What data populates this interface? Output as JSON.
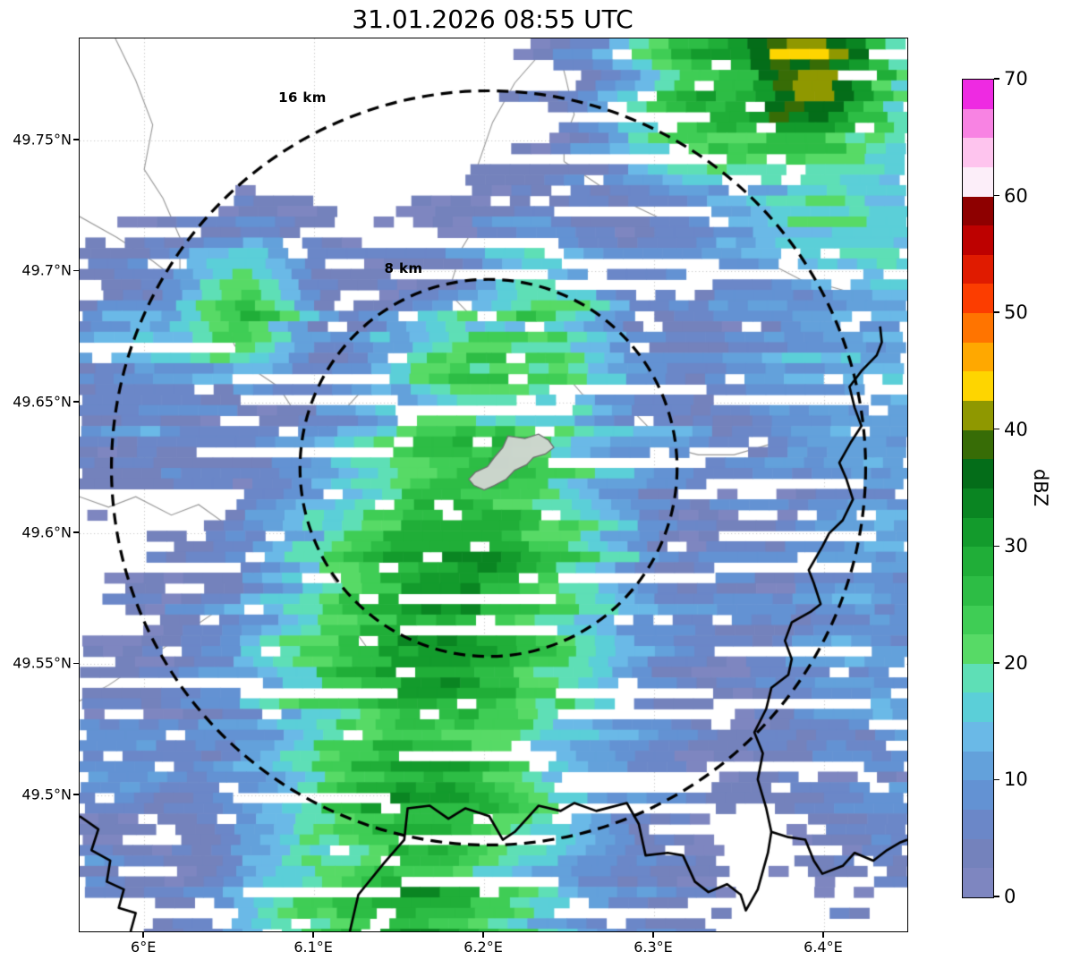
{
  "chart_data": {
    "type": "heatmap",
    "title": "31.01.2026 08:55 UTC",
    "x_axis": {
      "range": [
        5.962,
        6.449
      ],
      "ticks": [
        {
          "value": 6.0,
          "label": "6°E"
        },
        {
          "value": 6.1,
          "label": "6.1°E"
        },
        {
          "value": 6.2,
          "label": "6.2°E"
        },
        {
          "value": 6.3,
          "label": "6.3°E"
        },
        {
          "value": 6.4,
          "label": "6.4°E"
        }
      ]
    },
    "y_axis": {
      "range": [
        49.448,
        49.789
      ],
      "ticks": [
        {
          "value": 49.75,
          "label": "49.75°N"
        },
        {
          "value": 49.7,
          "label": "49.7°N"
        },
        {
          "value": 49.65,
          "label": "49.65°N"
        },
        {
          "value": 49.6,
          "label": "49.6°N"
        },
        {
          "value": 49.55,
          "label": "49.55°N"
        },
        {
          "value": 49.5,
          "label": "49.5°N"
        }
      ]
    },
    "grid": "dotted",
    "colorbar": {
      "label": "dBZ",
      "min": 0,
      "max": 70,
      "step": 2.5,
      "tick_values": [
        0,
        10,
        20,
        30,
        40,
        50,
        60,
        70
      ],
      "tick_labels": [
        "0",
        "10",
        "20",
        "30",
        "40",
        "50",
        "60",
        "70"
      ],
      "colors": [
        "#7e86c0",
        "#7482bc",
        "#6b87c8",
        "#6392d3",
        "#63a1db",
        "#6ab9e7",
        "#5bcfd8",
        "#5edfb6",
        "#57da66",
        "#3fcd55",
        "#2dbd45",
        "#20ae38",
        "#139b2c",
        "#0a8522",
        "#046d19",
        "#376c06",
        "#8f9800",
        "#fed500",
        "#ffa800",
        "#ff7400",
        "#fc3d00",
        "#e01b00",
        "#bd0100",
        "#8e0000",
        "#fceef9",
        "#fec4ee",
        "#f883e3",
        "#ee2ae2"
      ]
    },
    "range_circles": {
      "center": [
        6.2026,
        49.625
      ],
      "circles": [
        {
          "label": "8 km",
          "radius_km": 8
        },
        {
          "label": "16 km",
          "radius_km": 16
        }
      ]
    },
    "echo_blobs": {
      "format": [
        "lon",
        "lat",
        "peak_dbz",
        "sigma_lon_deg",
        "sigma_lat_deg"
      ],
      "blobs": [
        [
          6.155,
          49.455,
          29,
          0.075,
          0.03
        ],
        [
          6.165,
          49.5,
          30,
          0.075,
          0.032
        ],
        [
          6.17,
          49.55,
          31,
          0.08,
          0.034
        ],
        [
          6.18,
          49.59,
          33,
          0.075,
          0.034
        ],
        [
          6.195,
          49.625,
          26,
          0.07,
          0.028
        ],
        [
          6.21,
          49.66,
          25,
          0.055,
          0.028
        ],
        [
          6.235,
          49.69,
          22,
          0.04,
          0.022
        ],
        [
          6.29,
          49.64,
          9,
          0.045,
          0.03
        ],
        [
          6.055,
          49.685,
          27,
          0.033,
          0.02
        ],
        [
          6.02,
          49.675,
          14,
          0.045,
          0.022
        ],
        [
          6.0,
          49.66,
          9,
          0.04,
          0.03
        ],
        [
          6.26,
          49.72,
          8,
          0.03,
          0.015
        ],
        [
          6.33,
          49.705,
          9,
          0.06,
          0.028
        ],
        [
          6.39,
          49.775,
          43,
          0.045,
          0.028
        ],
        [
          6.34,
          49.77,
          30,
          0.05,
          0.03
        ],
        [
          6.41,
          49.74,
          20,
          0.07,
          0.045
        ],
        [
          6.31,
          49.783,
          14,
          0.018,
          0.01
        ],
        [
          6.43,
          49.7,
          17,
          0.045,
          0.022
        ],
        [
          6.42,
          49.655,
          13,
          0.065,
          0.035
        ],
        [
          6.43,
          49.6,
          12,
          0.05,
          0.04
        ],
        [
          6.42,
          49.545,
          10,
          0.05,
          0.035
        ],
        [
          6.44,
          49.5,
          8,
          0.04,
          0.025
        ],
        [
          6.335,
          49.585,
          8,
          0.04,
          0.03
        ],
        [
          5.99,
          49.51,
          10,
          0.042,
          0.016
        ],
        [
          5.972,
          49.468,
          7,
          0.02,
          0.012
        ]
      ]
    },
    "map_layers": {
      "admin_boundaries": [
        [
          [
            6.241,
            49.789
          ],
          [
            6.218,
            49.772
          ],
          [
            6.205,
            49.757
          ],
          [
            6.196,
            49.74
          ],
          [
            6.201,
            49.724
          ],
          [
            6.187,
            49.709
          ],
          [
            6.179,
            49.692
          ],
          [
            6.197,
            49.68
          ],
          [
            6.221,
            49.673
          ],
          [
            6.242,
            49.665
          ],
          [
            6.258,
            49.653
          ],
          [
            6.284,
            49.649
          ],
          [
            6.296,
            49.641
          ],
          [
            6.308,
            49.633
          ],
          [
            6.326,
            49.63
          ],
          [
            6.347,
            49.63
          ],
          [
            6.368,
            49.634
          ],
          [
            6.389,
            49.629
          ],
          [
            6.411,
            49.632
          ],
          [
            6.434,
            49.628
          ]
        ],
        [
          [
            5.962,
            49.721
          ],
          [
            5.984,
            49.713
          ],
          [
            6.005,
            49.704
          ],
          [
            6.021,
            49.696
          ],
          [
            6.037,
            49.691
          ],
          [
            6.047,
            49.684
          ],
          [
            6.053,
            49.672
          ],
          [
            6.063,
            49.663
          ],
          [
            6.079,
            49.656
          ],
          [
            6.089,
            49.646
          ],
          [
            6.105,
            49.639
          ],
          [
            6.116,
            49.646
          ],
          [
            6.126,
            49.653
          ],
          [
            6.142,
            49.656
          ],
          [
            6.158,
            49.661
          ],
          [
            6.174,
            49.665
          ],
          [
            6.179,
            49.677
          ],
          [
            6.179,
            49.692
          ]
        ],
        [
          [
            5.962,
            49.614
          ],
          [
            5.979,
            49.61
          ],
          [
            5.995,
            49.614
          ],
          [
            6.016,
            49.607
          ],
          [
            6.032,
            49.611
          ],
          [
            6.047,
            49.604
          ],
          [
            6.063,
            49.608
          ],
          [
            6.079,
            49.601
          ],
          [
            6.095,
            49.604
          ],
          [
            6.105,
            49.596
          ],
          [
            6.11,
            49.584
          ],
          [
            6.121,
            49.573
          ],
          [
            6.126,
            49.561
          ],
          [
            6.137,
            49.551
          ],
          [
            6.147,
            49.542
          ],
          [
            6.158,
            49.534
          ]
        ],
        [
          [
            5.962,
            49.536
          ],
          [
            5.979,
            49.542
          ],
          [
            5.995,
            49.549
          ],
          [
            6.011,
            49.556
          ],
          [
            6.026,
            49.563
          ],
          [
            6.042,
            49.57
          ],
          [
            6.053,
            49.577
          ],
          [
            6.063,
            49.584
          ],
          [
            6.074,
            49.591
          ],
          [
            6.084,
            49.598
          ],
          [
            6.095,
            49.604
          ]
        ],
        [
          [
            6.247,
            49.742
          ],
          [
            6.263,
            49.735
          ],
          [
            6.279,
            49.728
          ],
          [
            6.295,
            49.723
          ],
          [
            6.311,
            49.718
          ],
          [
            6.326,
            49.711
          ],
          [
            6.342,
            49.708
          ],
          [
            6.358,
            49.704
          ],
          [
            6.374,
            49.701
          ],
          [
            6.389,
            49.696
          ],
          [
            6.405,
            49.694
          ],
          [
            6.421,
            49.691
          ],
          [
            6.434,
            49.689
          ]
        ],
        [
          [
            6.242,
            49.789
          ],
          [
            6.248,
            49.774
          ],
          [
            6.253,
            49.76
          ],
          [
            6.247,
            49.75
          ],
          [
            6.247,
            49.742
          ]
        ],
        [
          [
            5.983,
            49.789
          ],
          [
            5.995,
            49.773
          ],
          [
            6.005,
            49.756
          ],
          [
            6.0,
            49.739
          ],
          [
            6.011,
            49.728
          ],
          [
            6.021,
            49.713
          ],
          [
            6.021,
            49.696
          ]
        ]
      ],
      "national_border": [
        [
          [
            6.121,
            49.448
          ],
          [
            6.126,
            49.462
          ],
          [
            6.141,
            49.474
          ],
          [
            6.153,
            49.483
          ],
          [
            6.155,
            49.495
          ],
          [
            6.168,
            49.496
          ],
          [
            6.179,
            49.491
          ],
          [
            6.189,
            49.495
          ],
          [
            6.203,
            49.492
          ],
          [
            6.211,
            49.483
          ],
          [
            6.218,
            49.486
          ],
          [
            6.232,
            49.496
          ],
          [
            6.245,
            49.494
          ],
          [
            6.253,
            49.497
          ],
          [
            6.266,
            49.494
          ],
          [
            6.284,
            49.497
          ],
          [
            6.291,
            49.489
          ],
          [
            6.295,
            49.477
          ],
          [
            6.308,
            49.478
          ],
          [
            6.317,
            49.477
          ],
          [
            6.324,
            49.467
          ],
          [
            6.332,
            49.463
          ],
          [
            6.343,
            49.466
          ],
          [
            6.351,
            49.462
          ],
          [
            6.354,
            49.456
          ],
          [
            6.361,
            49.464
          ],
          [
            6.364,
            49.471
          ],
          [
            6.367,
            49.478
          ],
          [
            6.369,
            49.486
          ],
          [
            6.379,
            49.484
          ],
          [
            6.389,
            49.483
          ],
          [
            6.394,
            49.475
          ],
          [
            6.399,
            49.47
          ],
          [
            6.411,
            49.473
          ],
          [
            6.418,
            49.478
          ],
          [
            6.429,
            49.475
          ],
          [
            6.437,
            49.479
          ],
          [
            6.445,
            49.482
          ],
          [
            6.449,
            49.483
          ]
        ],
        [
          [
            6.369,
            49.486
          ],
          [
            6.366,
            49.495
          ],
          [
            6.361,
            49.506
          ],
          [
            6.364,
            49.516
          ],
          [
            6.359,
            49.524
          ],
          [
            6.366,
            49.533
          ],
          [
            6.369,
            49.541
          ],
          [
            6.379,
            49.546
          ],
          [
            6.381,
            49.552
          ],
          [
            6.377,
            49.559
          ],
          [
            6.381,
            49.566
          ],
          [
            6.392,
            49.57
          ],
          [
            6.398,
            49.573
          ],
          [
            6.394,
            49.581
          ],
          [
            6.391,
            49.586
          ],
          [
            6.399,
            49.595
          ],
          [
            6.403,
            49.6
          ],
          [
            6.411,
            49.605
          ],
          [
            6.417,
            49.613
          ],
          [
            6.413,
            49.621
          ],
          [
            6.409,
            49.627
          ],
          [
            6.416,
            49.635
          ],
          [
            6.422,
            49.641
          ],
          [
            6.418,
            49.648
          ],
          [
            6.415,
            49.656
          ],
          [
            6.422,
            49.662
          ],
          [
            6.431,
            49.668
          ],
          [
            6.434,
            49.673
          ],
          [
            6.433,
            49.679
          ]
        ],
        [
          [
            5.962,
            49.492
          ],
          [
            5.973,
            49.487
          ],
          [
            5.969,
            49.479
          ],
          [
            5.98,
            49.475
          ],
          [
            5.978,
            49.467
          ],
          [
            5.988,
            49.464
          ],
          [
            5.985,
            49.457
          ],
          [
            5.995,
            49.455
          ],
          [
            5.992,
            49.448
          ]
        ]
      ],
      "city_outline": [
        [
          6.214,
          49.6372
        ],
        [
          6.224,
          49.6362
        ],
        [
          6.232,
          49.6379
        ],
        [
          6.238,
          49.6355
        ],
        [
          6.241,
          49.6328
        ],
        [
          6.236,
          49.6303
        ],
        [
          6.229,
          49.629
        ],
        [
          6.225,
          49.6262
        ],
        [
          6.218,
          49.6241
        ],
        [
          6.213,
          49.6207
        ],
        [
          6.206,
          49.6183
        ],
        [
          6.2,
          49.6166
        ],
        [
          6.194,
          49.6183
        ],
        [
          6.191,
          49.6207
        ],
        [
          6.195,
          49.6234
        ],
        [
          6.202,
          49.6255
        ],
        [
          6.206,
          49.629
        ],
        [
          6.211,
          49.6328
        ]
      ]
    }
  }
}
